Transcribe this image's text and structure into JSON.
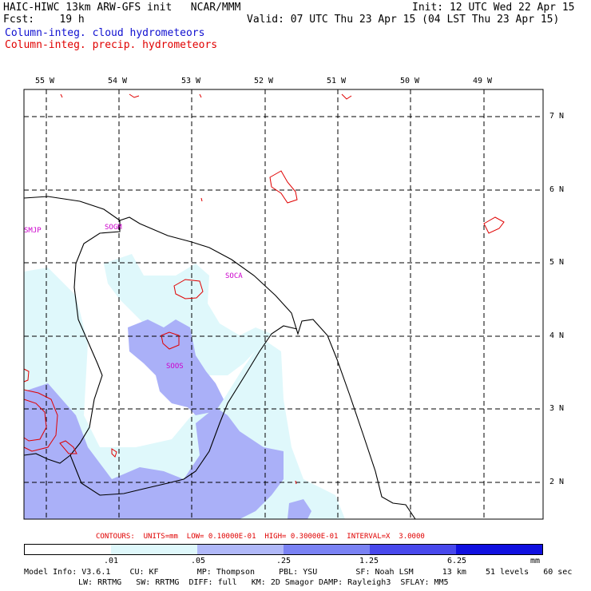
{
  "header": {
    "title": "HAIC-HIWC 13km ARW-GFS init   NCAR/MMM",
    "fcst": "Fcst:    19 h",
    "init": "Init: 12 UTC Wed 22 Apr 15",
    "valid": "Valid: 07 UTC Thu 23 Apr 15 (04 LST Thu 23 Apr 15)",
    "field1": "Column-integ. cloud hydrometeors",
    "field2": "Column-integ. precip. hydrometeors"
  },
  "map": {
    "lon_labels": [
      "55 W",
      "54 W",
      "53 W",
      "52 W",
      "51 W",
      "50 W",
      "49 W"
    ],
    "lat_labels": [
      "7 N",
      "6 N",
      "5 N",
      "4 N",
      "3 N",
      "2 N"
    ],
    "stations": [
      "SMJP",
      "SOGM",
      "SOCA",
      "SOOS"
    ]
  },
  "contours_text": "CONTOURS:  UNITS=mm  LOW= 0.10000E-01  HIGH= 0.30000E-01  INTERVAL=X  3.0000",
  "colorbar": {
    "colors": [
      "#ffffff",
      "#dff8fb",
      "#b0b8f8",
      "#7a82f4",
      "#4848ec",
      "#1010e0"
    ],
    "labels": [
      ".01",
      ".05",
      ".25",
      "1.25",
      "6.25"
    ],
    "units": "mm"
  },
  "footer": {
    "line1": "Model Info: V3.6.1    CU: KF        MP: Thompson     PBL: YSU        SF: Noah LSM      13 km    51 levels   60 sec",
    "line2": "LW: RRTMG   SW: RRTMG  DIFF: full   KM: 2D Smagor DAMP: Rayleigh3  SFLAY: MM5"
  }
}
